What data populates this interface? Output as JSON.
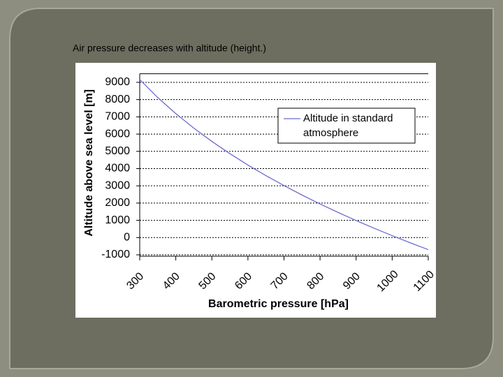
{
  "slide_title": "Air pressure decreases with altitude (height.)",
  "chart_data": {
    "type": "line",
    "x_label": "Barometric pressure [hPa]",
    "y_label": "Altitude above sea level [m]",
    "x": [
      300,
      350,
      400,
      450,
      500,
      550,
      600,
      650,
      700,
      750,
      800,
      850,
      900,
      950,
      1000,
      1050,
      1100
    ],
    "series": [
      {
        "name": "Altitude in standard atmosphere",
        "color": "#6b6bd0",
        "values": [
          9164,
          8116,
          7186,
          6345,
          5575,
          4866,
          4206,
          3592,
          3013,
          2466,
          1949,
          1458,
          989,
          540,
          111,
          -302,
          -699
        ]
      }
    ],
    "xlim": [
      300,
      1100
    ],
    "xticks": [
      300,
      400,
      500,
      600,
      700,
      800,
      900,
      1000,
      1100
    ],
    "ylim": [
      -1000,
      9500
    ],
    "yticks": [
      -1000,
      0,
      1000,
      2000,
      3000,
      4000,
      5000,
      6000,
      7000,
      8000,
      9000
    ],
    "grid": true,
    "legend": "upper right"
  }
}
